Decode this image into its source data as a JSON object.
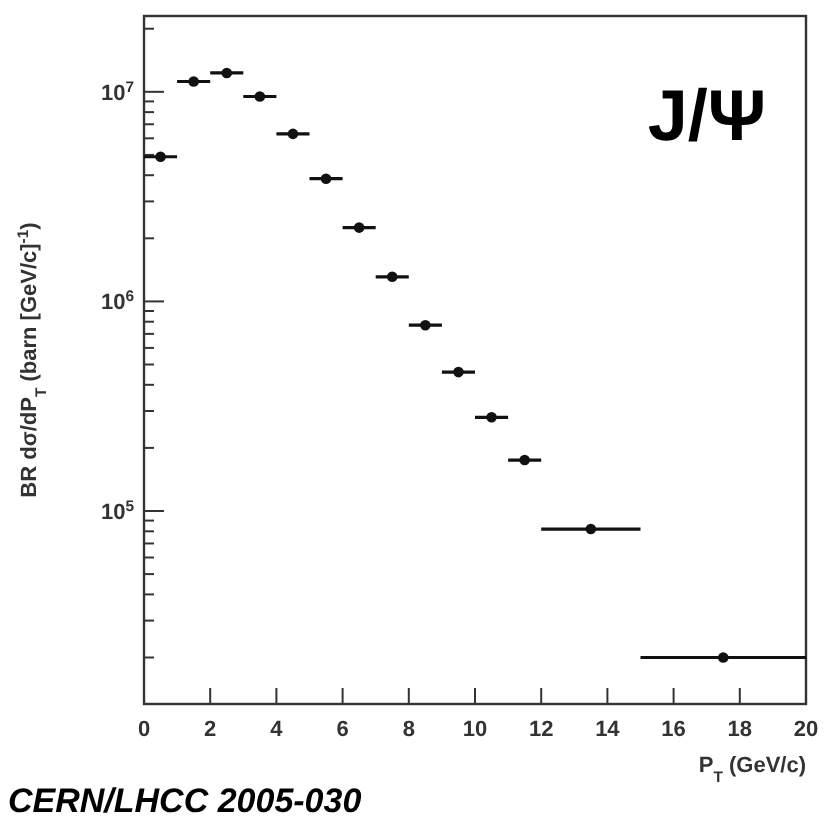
{
  "chart_data": {
    "type": "scatter",
    "xlabel": "P$_{T}$ (GeV/c)",
    "ylabel": "BR dσ/dP$_{T}$ (barn [GeV/c]$^{-1}$)",
    "log": "y",
    "marker": "circle",
    "grid": false,
    "annotations": [
      "J/Ψ",
      "CERN/LHCC 2005-030"
    ],
    "x": [
      0.5,
      1.5,
      2.5,
      3.5,
      4.5,
      5.5,
      6.5,
      7.5,
      8.5,
      9.5,
      10.5,
      11.5,
      13.5,
      17.5
    ],
    "series": [
      {
        "color": "#111111",
        "values": [
          4900000,
          11200000,
          12300000,
          9500000,
          6300000,
          3850000,
          2250000,
          1310000,
          770000,
          460000,
          280000,
          175000,
          82000,
          20000
        ],
        "xerrors": [
          0.5,
          0.5,
          0.5,
          0.5,
          0.5,
          0.5,
          0.5,
          0.5,
          0.5,
          0.5,
          0.5,
          0.5,
          1.5,
          2.5
        ]
      }
    ],
    "xlim": [
      0,
      20
    ],
    "xticks": [
      0,
      2,
      4,
      6,
      8,
      10,
      12,
      14,
      16,
      18,
      20
    ],
    "ylim": [
      12000,
      23000000
    ],
    "yticks": [
      {
        "value": 20000,
        "label": null
      },
      {
        "value": 30000,
        "label": null
      },
      {
        "value": 40000,
        "label": null
      },
      {
        "value": 50000,
        "label": null
      },
      {
        "value": 60000,
        "label": null
      },
      {
        "value": 70000,
        "label": null
      },
      {
        "value": 80000,
        "label": null
      },
      {
        "value": 90000,
        "label": null
      },
      {
        "value": 100000,
        "label": "10$^{5}$"
      },
      {
        "value": 200000,
        "label": null
      },
      {
        "value": 300000,
        "label": null
      },
      {
        "value": 400000,
        "label": null
      },
      {
        "value": 500000,
        "label": null
      },
      {
        "value": 600000,
        "label": null
      },
      {
        "value": 700000,
        "label": null
      },
      {
        "value": 800000,
        "label": null
      },
      {
        "value": 900000,
        "label": null
      },
      {
        "value": 1000000,
        "label": "10$^{6}$"
      },
      {
        "value": 2000000,
        "label": null
      },
      {
        "value": 3000000,
        "label": null
      },
      {
        "value": 4000000,
        "label": null
      },
      {
        "value": 5000000,
        "label": null
      },
      {
        "value": 6000000,
        "label": null
      },
      {
        "value": 7000000,
        "label": null
      },
      {
        "value": 8000000,
        "label": null
      },
      {
        "value": 9000000,
        "label": null
      },
      {
        "value": 10000000,
        "label": "10$^{7}$"
      },
      {
        "value": 20000000,
        "label": null
      }
    ]
  }
}
